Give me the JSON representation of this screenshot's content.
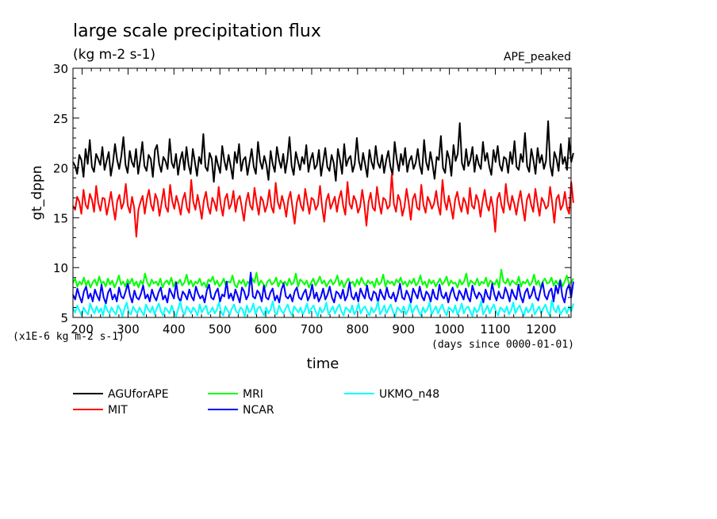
{
  "chart_data": {
    "type": "line",
    "title": "large scale precipitation flux",
    "subtitle": "(kg m-2 s-1)",
    "tag": "APE_peaked",
    "ylabel": "gt_dppn",
    "xlabel": "time",
    "y_scale_note": "(x1E-6 kg m-2 s-1)",
    "x_units_note": "(days since 0000-01-01)",
    "xlim": [
      180,
      1265
    ],
    "ylim": [
      5,
      30
    ],
    "x_ticks": [
      200,
      300,
      400,
      500,
      600,
      700,
      800,
      900,
      1000,
      1100,
      1200
    ],
    "x_tick_labels": [
      "200",
      "300",
      "400",
      "500",
      "600",
      "700",
      "800",
      "900",
      "1000",
      "1100",
      "1200"
    ],
    "y_ticks": [
      5,
      10,
      15,
      20,
      25,
      30
    ],
    "y_tick_labels": [
      "5",
      "10",
      "15",
      "20",
      "25",
      "30"
    ],
    "grid": false,
    "legend_position": "below",
    "x_start": 180,
    "x_end": 1270,
    "series": [
      {
        "name": "AGUforAPE",
        "color": "#000000",
        "values": [
          20.6,
          20.2,
          19.4,
          21.3,
          20.8,
          19.1,
          21.9,
          20.4,
          22.8,
          20.1,
          19.6,
          21.4,
          20.9,
          20.3,
          22.1,
          19.8,
          20.7,
          21.6,
          19.2,
          20.5,
          22.4,
          20.8,
          19.9,
          21.2,
          23.1,
          20.3,
          19.5,
          21.7,
          20.6,
          20.1,
          21.9,
          19.4,
          20.8,
          22.6,
          20.2,
          19.7,
          21.3,
          20.9,
          19.1,
          21.8,
          22.3,
          20.4,
          19.6,
          21.1,
          20.7,
          19.9,
          22.9,
          20.5,
          20.0,
          21.4,
          19.3,
          20.8,
          21.6,
          19.8,
          22.1,
          20.3,
          19.4,
          21.9,
          20.6,
          19.2,
          21.1,
          20.4,
          23.4,
          20.1,
          19.7,
          21.5,
          20.9,
          18.6,
          21.2,
          20.3,
          19.5,
          22.2,
          20.7,
          19.8,
          21.3,
          20.2,
          18.9,
          21.6,
          20.5,
          22.4,
          19.7,
          20.8,
          21.1,
          19.3,
          20.6,
          21.9,
          20.1,
          19.4,
          22.6,
          20.7,
          19.9,
          21.2,
          20.3,
          18.8,
          21.7,
          20.4,
          19.6,
          22.1,
          20.8,
          20.0,
          21.4,
          19.5,
          20.9,
          23.1,
          20.2,
          19.3,
          21.6,
          20.7,
          19.8,
          21.1,
          20.4,
          22.3,
          19.6,
          20.8,
          21.5,
          19.9,
          20.3,
          21.8,
          19.2,
          20.6,
          22.0,
          20.1,
          19.7,
          21.3,
          20.5,
          18.7,
          21.9,
          20.8,
          19.4,
          22.4,
          20.2,
          20.9,
          21.2,
          19.6,
          20.4,
          23.0,
          20.7,
          19.8,
          21.5,
          20.3,
          19.1,
          21.8,
          20.6,
          19.9,
          22.2,
          20.5,
          20.0,
          21.3,
          19.5,
          20.8,
          21.7,
          20.1,
          19.3,
          22.6,
          20.9,
          19.7,
          21.4,
          20.3,
          22.0,
          19.6,
          20.7,
          21.2,
          19.9,
          20.5,
          21.9,
          20.2,
          19.4,
          22.8,
          20.6,
          19.8,
          21.6,
          20.4,
          18.9,
          21.1,
          20.8,
          23.2,
          20.0,
          19.5,
          21.7,
          20.9,
          19.2,
          22.3,
          20.7,
          21.4,
          24.5,
          20.5,
          19.8,
          21.9,
          20.2,
          20.8,
          22.1,
          19.6,
          21.3,
          20.4,
          19.9,
          22.6,
          20.7,
          21.5,
          20.1,
          19.3,
          21.8,
          20.6,
          22.2,
          20.3,
          19.7,
          21.1,
          20.9,
          19.5,
          21.6,
          20.4,
          22.7,
          20.1,
          19.8,
          21.4,
          20.6,
          23.5,
          20.2,
          19.6,
          21.9,
          20.8,
          19.4,
          22.0,
          20.5,
          21.3,
          19.9,
          20.7,
          24.7,
          20.3,
          19.2,
          21.6,
          20.9,
          19.7,
          22.4,
          20.4,
          21.1,
          19.8,
          22.9,
          20.6,
          21.5
        ]
      },
      {
        "name": "MIT",
        "color": "#ff0000",
        "values": [
          16.2,
          15.8,
          17.1,
          16.6,
          15.4,
          17.8,
          16.3,
          15.9,
          17.4,
          16.8,
          15.6,
          18.2,
          16.5,
          15.7,
          17.0,
          16.9,
          15.3,
          16.4,
          17.6,
          16.1,
          14.8,
          16.7,
          17.3,
          15.9,
          16.5,
          18.4,
          16.2,
          15.5,
          17.1,
          16.0,
          13.1,
          15.8,
          16.6,
          17.2,
          15.4,
          16.9,
          17.8,
          16.3,
          15.7,
          17.4,
          16.8,
          15.2,
          16.5,
          17.9,
          16.1,
          15.6,
          18.3,
          16.7,
          15.9,
          17.2,
          16.4,
          15.3,
          16.8,
          17.5,
          16.0,
          15.5,
          18.8,
          16.6,
          15.8,
          17.3,
          16.2,
          14.9,
          16.7,
          17.6,
          16.1,
          15.4,
          17.0,
          16.5,
          15.7,
          18.1,
          16.3,
          15.2,
          16.9,
          17.4,
          15.9,
          16.4,
          17.7,
          15.6,
          16.8,
          17.2,
          16.0,
          14.7,
          16.6,
          17.5,
          16.2,
          15.8,
          18.0,
          16.5,
          15.3,
          17.1,
          16.7,
          15.6,
          16.3,
          17.8,
          16.1,
          15.5,
          18.5,
          16.6,
          15.9,
          17.2,
          16.4,
          15.1,
          16.8,
          17.6,
          16.0,
          14.4,
          16.5,
          17.3,
          16.2,
          15.7,
          17.9,
          16.6,
          15.4,
          17.0,
          16.8,
          15.8,
          16.3,
          18.2,
          16.1,
          14.6,
          16.7,
          17.4,
          15.9,
          16.5,
          17.1,
          15.6,
          16.9,
          17.7,
          16.2,
          15.3,
          18.6,
          16.4,
          15.9,
          17.2,
          16.7,
          15.5,
          16.1,
          17.8,
          16.3,
          14.2,
          16.6,
          17.5,
          16.0,
          15.7,
          18.1,
          16.5,
          15.4,
          17.0,
          16.8,
          15.9,
          16.2,
          19.4,
          16.4,
          15.6,
          17.3,
          16.7,
          15.2,
          16.1,
          17.9,
          16.5,
          14.8,
          16.9,
          17.4,
          16.0,
          15.8,
          18.3,
          16.3,
          15.5,
          17.1,
          16.6,
          15.9,
          16.4,
          17.7,
          16.2,
          15.3,
          18.8,
          16.7,
          15.8,
          17.2,
          16.1,
          14.9,
          16.8,
          17.6,
          16.4,
          15.6,
          17.0,
          16.5,
          15.4,
          18.0,
          16.2,
          15.9,
          17.3,
          16.7,
          15.1,
          16.6,
          17.8,
          16.3,
          15.7,
          17.1,
          16.0,
          13.6,
          16.9,
          17.5,
          16.2,
          15.5,
          18.4,
          16.6,
          15.8,
          17.2,
          16.4,
          15.3,
          16.7,
          17.7,
          16.1,
          14.7,
          16.8,
          17.4,
          16.3,
          15.6,
          17.9,
          16.5,
          15.2,
          17.0,
          16.6,
          15.9,
          16.2,
          18.1,
          16.4,
          14.5,
          16.9,
          17.3,
          15.8,
          16.3,
          17.6,
          16.0,
          15.4,
          18.6,
          16.5
        ]
      },
      {
        "name": "MRI",
        "color": "#00ff00",
        "values": [
          8.5,
          8.9,
          8.1,
          8.6,
          8.3,
          9.0,
          8.2,
          8.7,
          8.0,
          8.5,
          8.8,
          8.2,
          9.1,
          8.4,
          8.6,
          8.1,
          8.9,
          8.3,
          8.7,
          8.0,
          8.5,
          9.2,
          8.3,
          8.6,
          8.1,
          8.8,
          8.4,
          8.9,
          8.2,
          8.6,
          8.0,
          8.7,
          8.3,
          9.4,
          8.5,
          8.1,
          8.8,
          8.4,
          8.6,
          8.2,
          8.9,
          8.0,
          8.5,
          8.7,
          8.3,
          9.0,
          8.1,
          8.6,
          8.4,
          8.8,
          8.2,
          8.5,
          9.3,
          8.3,
          8.7,
          8.1,
          8.6,
          8.4,
          8.9,
          8.2,
          8.5,
          8.0,
          8.8,
          8.6,
          9.1,
          8.3,
          8.7,
          8.1,
          8.4,
          8.9,
          8.2,
          8.6,
          8.5,
          9.2,
          8.3,
          8.0,
          8.7,
          8.4,
          8.8,
          8.1,
          8.6,
          8.3,
          8.9,
          8.5,
          9.5,
          8.2,
          8.7,
          8.4,
          8.0,
          8.6,
          8.8,
          8.3,
          8.5,
          9.0,
          8.1,
          8.7,
          8.4,
          8.6,
          8.2,
          8.9,
          8.3,
          8.5,
          9.4,
          8.1,
          8.8,
          8.6,
          8.3,
          8.7,
          8.0,
          8.5,
          8.9,
          8.2,
          8.6,
          9.1,
          8.4,
          8.7,
          8.1,
          8.5,
          8.8,
          8.3,
          8.6,
          9.2,
          8.2,
          8.7,
          8.0,
          8.5,
          8.9,
          8.4,
          8.6,
          8.1,
          8.8,
          8.3,
          9.0,
          8.5,
          8.2,
          8.7,
          8.4,
          8.6,
          8.0,
          8.9,
          8.3,
          8.5,
          9.3,
          8.1,
          8.7,
          8.4,
          8.6,
          8.2,
          8.8,
          8.5,
          9.0,
          8.3,
          8.6,
          8.1,
          8.7,
          8.4,
          8.9,
          8.2,
          8.5,
          9.2,
          8.3,
          8.6,
          8.0,
          8.8,
          8.4,
          8.7,
          8.1,
          8.5,
          8.9,
          8.3,
          8.6,
          9.1,
          8.2,
          8.7,
          8.4,
          8.5,
          8.0,
          8.8,
          8.3,
          8.6,
          9.4,
          8.1,
          8.7,
          8.5,
          8.3,
          8.9,
          8.2,
          8.6,
          8.4,
          9.0,
          8.1,
          8.7,
          8.5,
          8.3,
          8.8,
          8.0,
          9.8,
          8.6,
          8.4,
          8.9,
          8.2,
          8.7,
          8.5,
          8.3,
          9.1,
          8.1,
          8.6,
          8.4,
          8.8,
          8.2,
          8.5,
          9.3,
          8.3,
          8.7,
          8.0,
          8.6,
          8.9,
          8.4,
          8.5,
          9.0,
          8.2,
          8.7,
          8.3,
          8.8,
          8.1,
          8.6,
          9.2,
          8.4,
          8.5,
          8.9
        ]
      },
      {
        "name": "NCAR",
        "color": "#0000ff",
        "values": [
          7.3,
          6.8,
          7.9,
          7.1,
          6.5,
          7.6,
          8.1,
          6.9,
          7.4,
          6.6,
          7.8,
          7.2,
          6.7,
          8.3,
          7.0,
          6.4,
          7.5,
          7.9,
          6.8,
          7.3,
          6.6,
          8.0,
          7.1,
          6.9,
          7.6,
          8.4,
          7.2,
          6.5,
          7.7,
          7.0,
          6.8,
          7.4,
          8.2,
          6.9,
          7.3,
          6.6,
          7.8,
          7.1,
          6.7,
          7.5,
          8.0,
          6.8,
          7.2,
          6.5,
          7.9,
          7.4,
          6.9,
          8.5,
          7.0,
          6.6,
          7.6,
          7.3,
          6.8,
          7.8,
          7.1,
          6.7,
          8.1,
          7.4,
          6.9,
          7.2,
          6.5,
          7.7,
          8.3,
          7.0,
          6.8,
          7.5,
          7.9,
          6.6,
          7.3,
          7.1,
          8.6,
          6.9,
          7.4,
          6.7,
          7.8,
          7.2,
          6.5,
          8.0,
          7.6,
          6.8,
          7.3,
          9.5,
          7.1,
          6.9,
          7.7,
          7.4,
          6.6,
          8.2,
          7.0,
          6.8,
          7.5,
          7.9,
          6.7,
          7.2,
          6.5,
          7.8,
          8.4,
          7.1,
          6.9,
          7.3,
          6.6,
          7.6,
          8.0,
          7.0,
          6.8,
          7.4,
          7.8,
          6.7,
          7.2,
          8.3,
          6.9,
          7.5,
          6.6,
          7.1,
          7.9,
          6.8,
          7.3,
          8.1,
          7.0,
          6.5,
          7.6,
          7.4,
          6.9,
          7.8,
          6.7,
          7.2,
          8.5,
          7.1,
          6.8,
          7.5,
          6.6,
          7.9,
          7.3,
          6.9,
          8.2,
          7.0,
          6.7,
          7.6,
          7.4,
          6.5,
          7.8,
          7.2,
          6.8,
          8.0,
          7.1,
          6.9,
          7.5,
          6.6,
          7.3,
          8.4,
          7.0,
          6.8,
          7.7,
          7.2,
          6.5,
          7.9,
          7.4,
          6.9,
          8.1,
          7.1,
          6.7,
          7.6,
          7.3,
          6.6,
          7.8,
          7.0,
          6.8,
          8.3,
          7.2,
          6.9,
          7.5,
          6.5,
          7.4,
          8.0,
          7.1,
          6.7,
          7.7,
          7.3,
          6.8,
          7.9,
          7.0,
          6.6,
          8.2,
          7.4,
          6.9,
          7.5,
          7.2,
          6.5,
          7.8,
          7.1,
          6.8,
          8.4,
          7.3,
          6.7,
          7.6,
          7.0,
          6.9,
          8.0,
          7.4,
          6.6,
          7.8,
          7.2,
          6.8,
          8.3,
          7.1,
          6.5,
          7.5,
          7.9,
          6.9,
          7.3,
          8.1,
          7.0,
          6.7,
          7.7,
          8.5,
          7.2,
          6.8,
          7.6,
          7.9,
          6.6,
          8.2,
          7.4,
          8.7,
          7.1,
          6.5,
          7.8,
          8.3,
          7.0,
          8.6
        ]
      },
      {
        "name": "UKMO_n48",
        "color": "#00ffff",
        "values": [
          5.9,
          5.5,
          6.2,
          5.7,
          5.2,
          6.0,
          5.6,
          5.3,
          6.4,
          5.8,
          5.4,
          6.1,
          5.5,
          5.9,
          5.2,
          6.3,
          5.7,
          5.4,
          6.0,
          5.6,
          5.3,
          6.2,
          5.8,
          5.1,
          5.9,
          6.5,
          5.5,
          5.3,
          6.1,
          5.7,
          5.4,
          6.0,
          5.6,
          5.2,
          6.3,
          5.8,
          5.5,
          6.1,
          5.3,
          5.9,
          6.4,
          5.6,
          5.2,
          6.0,
          5.7,
          5.4,
          6.2,
          5.5,
          5.1,
          5.9,
          6.6,
          5.6,
          5.3,
          6.1,
          5.8,
          5.4,
          6.0,
          5.7,
          5.2,
          6.3,
          5.5,
          5.9,
          6.2,
          5.3,
          5.6,
          6.0,
          5.4,
          5.8,
          6.5,
          5.5,
          5.2,
          6.1,
          5.7,
          5.3,
          5.9,
          6.3,
          5.6,
          5.4,
          6.0,
          5.8,
          5.1,
          6.2,
          5.5,
          5.7,
          6.4,
          5.3,
          5.9,
          6.1,
          5.6,
          5.2,
          6.0,
          5.4,
          5.8,
          6.6,
          5.5,
          5.3,
          6.2,
          5.7,
          5.4,
          5.9,
          6.3,
          5.6,
          5.2,
          6.1,
          5.8,
          5.5,
          6.0,
          5.3,
          5.7,
          6.4,
          5.4,
          5.9,
          6.2,
          5.6,
          5.1,
          6.0,
          5.5,
          5.8,
          6.5,
          5.3,
          5.7,
          6.1,
          5.4,
          5.9,
          6.3,
          5.6,
          5.2,
          6.0,
          5.8,
          5.5,
          6.2,
          5.3,
          5.7,
          6.4,
          5.4,
          5.9,
          6.1,
          5.6,
          5.2,
          6.0,
          5.5,
          5.8,
          6.6,
          5.3,
          5.7,
          6.2,
          5.4,
          5.9,
          6.3,
          5.6,
          5.1,
          6.0,
          5.8,
          5.5,
          6.1,
          5.3,
          5.7,
          6.4,
          5.4,
          5.9,
          6.2,
          5.6,
          5.2,
          6.0,
          5.5,
          5.8,
          6.5,
          5.3,
          5.7,
          6.1,
          5.4,
          5.9,
          6.3,
          5.6,
          5.2,
          6.0,
          5.8,
          5.5,
          6.2,
          5.3,
          5.7,
          6.4,
          5.4,
          5.9,
          6.1,
          5.6,
          5.1,
          6.0,
          5.5,
          5.8,
          6.6,
          5.3,
          5.7,
          6.2,
          5.4,
          5.9,
          6.3,
          5.6,
          5.2,
          6.0,
          5.8,
          5.5,
          6.1,
          5.3,
          5.7,
          6.5,
          5.4,
          5.9,
          6.2,
          5.6,
          5.2,
          6.0,
          5.5,
          5.8,
          6.4,
          5.3,
          5.7,
          6.1,
          5.4,
          5.9,
          6.3,
          5.6,
          5.2,
          6.7,
          5.8,
          5.5,
          6.2,
          5.3,
          5.7,
          6.0,
          5.4,
          6.1,
          5.6,
          6.4
        ]
      }
    ]
  }
}
